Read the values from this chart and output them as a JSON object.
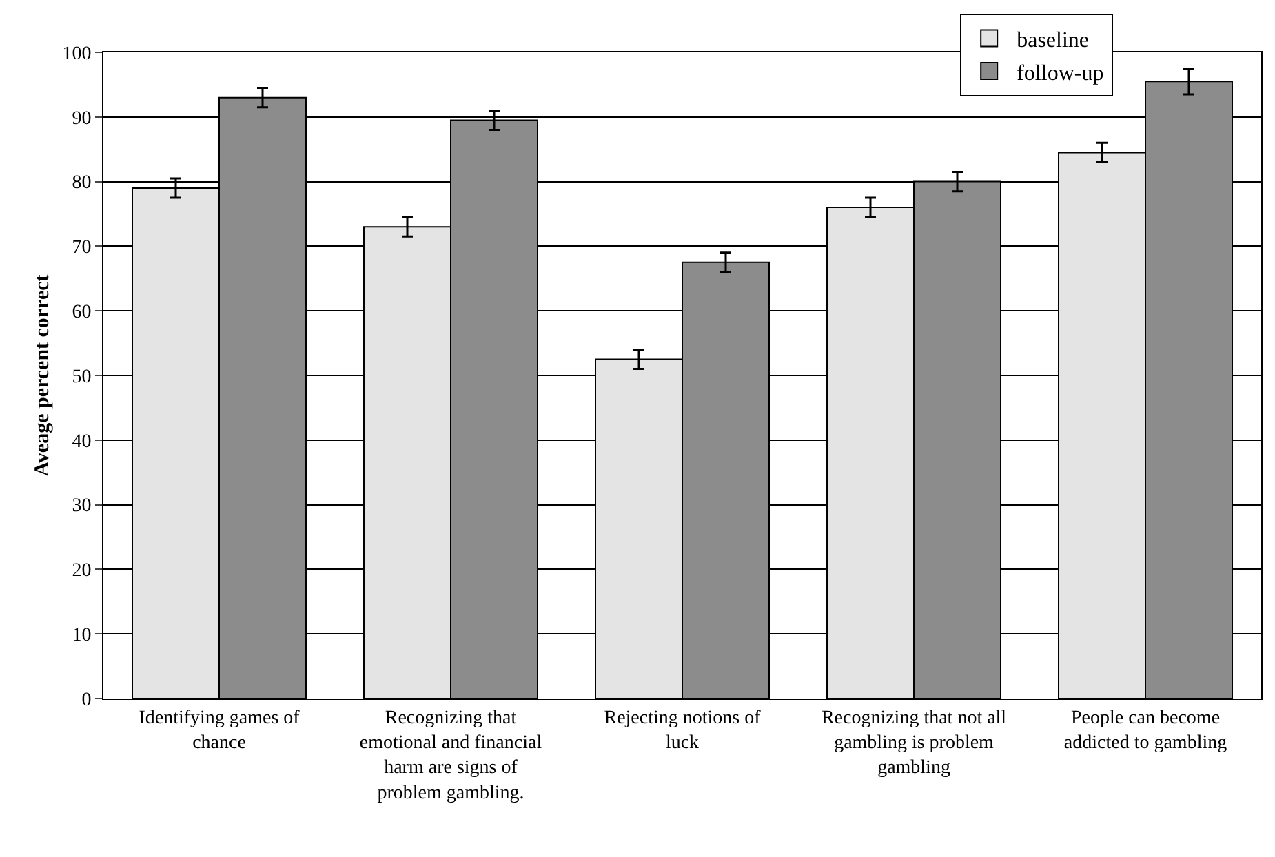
{
  "chart_data": {
    "type": "bar",
    "ylabel": "Aveage percent correct",
    "categories": [
      "Identifying games of chance",
      "Recognizing that emotional and financial harm are signs of problem gambling.",
      "Rejecting notions of luck",
      "Recognizing that not all gambling is problem gambling",
      "People can become addicted to gambling"
    ],
    "series": [
      {
        "name": "baseline",
        "color": "#e4e4e4",
        "values": [
          79,
          73,
          52.5,
          76,
          84.5
        ],
        "errors": [
          1.5,
          1.5,
          1.5,
          1.5,
          1.5
        ]
      },
      {
        "name": "follow-up",
        "color": "#8c8c8c",
        "values": [
          93,
          89.5,
          67.5,
          80,
          95.5
        ],
        "errors": [
          1.5,
          1.5,
          1.5,
          1.5,
          2
        ]
      }
    ],
    "ylim": [
      0,
      100
    ],
    "yticks": [
      0,
      10,
      20,
      30,
      40,
      50,
      60,
      70,
      80,
      90,
      100
    ],
    "grid": "y",
    "legend": "top right"
  }
}
